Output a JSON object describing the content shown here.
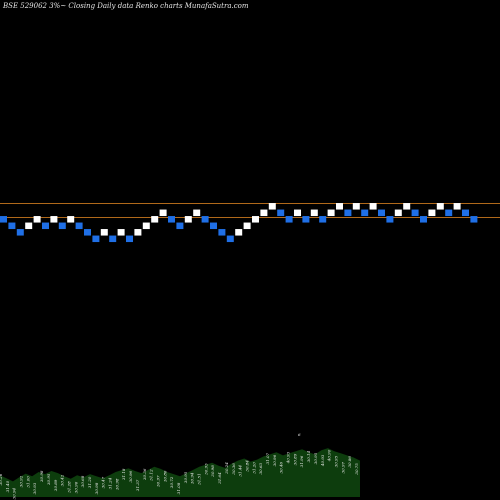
{
  "chart_data": {
    "type": "renko",
    "title": "BSE 529062  3%~  Closing Daily data  Renko  charts MunafaSutra.com",
    "colors": {
      "background": "#000000",
      "up": "#ffffff",
      "down": "#1f6fe6",
      "reference_line": "#c9781e",
      "volume_area": "#0d3d0d"
    },
    "bricks": [
      {
        "level": 0,
        "dir": "down"
      },
      {
        "level": -1,
        "dir": "down"
      },
      {
        "level": -2,
        "dir": "down"
      },
      {
        "level": -1,
        "dir": "up"
      },
      {
        "level": 0,
        "dir": "up"
      },
      {
        "level": -1,
        "dir": "down"
      },
      {
        "level": 0,
        "dir": "up"
      },
      {
        "level": -1,
        "dir": "down"
      },
      {
        "level": 0,
        "dir": "up"
      },
      {
        "level": -1,
        "dir": "down"
      },
      {
        "level": -2,
        "dir": "down"
      },
      {
        "level": -3,
        "dir": "down"
      },
      {
        "level": -2,
        "dir": "up"
      },
      {
        "level": -3,
        "dir": "down"
      },
      {
        "level": -2,
        "dir": "up"
      },
      {
        "level": -3,
        "dir": "down"
      },
      {
        "level": -2,
        "dir": "up"
      },
      {
        "level": -1,
        "dir": "up"
      },
      {
        "level": 0,
        "dir": "up"
      },
      {
        "level": 1,
        "dir": "up"
      },
      {
        "level": 0,
        "dir": "down"
      },
      {
        "level": -1,
        "dir": "down"
      },
      {
        "level": 0,
        "dir": "up"
      },
      {
        "level": 1,
        "dir": "up"
      },
      {
        "level": 0,
        "dir": "down"
      },
      {
        "level": -1,
        "dir": "down"
      },
      {
        "level": -2,
        "dir": "down"
      },
      {
        "level": -3,
        "dir": "down"
      },
      {
        "level": -2,
        "dir": "up"
      },
      {
        "level": -1,
        "dir": "up"
      },
      {
        "level": 0,
        "dir": "up"
      },
      {
        "level": 1,
        "dir": "up"
      },
      {
        "level": 2,
        "dir": "up"
      },
      {
        "level": 1,
        "dir": "down"
      },
      {
        "level": 0,
        "dir": "down"
      },
      {
        "level": 1,
        "dir": "up"
      },
      {
        "level": 0,
        "dir": "down"
      },
      {
        "level": 1,
        "dir": "up"
      },
      {
        "level": 0,
        "dir": "down"
      },
      {
        "level": 1,
        "dir": "up"
      },
      {
        "level": 2,
        "dir": "up"
      },
      {
        "level": 1,
        "dir": "down"
      },
      {
        "level": 2,
        "dir": "up"
      },
      {
        "level": 1,
        "dir": "down"
      },
      {
        "level": 2,
        "dir": "up"
      },
      {
        "level": 1,
        "dir": "down"
      },
      {
        "level": 0,
        "dir": "down"
      },
      {
        "level": 1,
        "dir": "up"
      },
      {
        "level": 2,
        "dir": "up"
      },
      {
        "level": 1,
        "dir": "down"
      },
      {
        "level": 0,
        "dir": "down"
      },
      {
        "level": 1,
        "dir": "up"
      },
      {
        "level": 2,
        "dir": "up"
      },
      {
        "level": 1,
        "dir": "down"
      },
      {
        "level": 2,
        "dir": "up"
      },
      {
        "level": 1,
        "dir": "down"
      },
      {
        "level": 0,
        "dir": "down"
      }
    ],
    "volume_levels": [
      0.42,
      0.36,
      0.3,
      0.38,
      0.45,
      0.4,
      0.48,
      0.44,
      0.5,
      0.46,
      0.4,
      0.35,
      0.42,
      0.38,
      0.44,
      0.4,
      0.36,
      0.42,
      0.48,
      0.52,
      0.55,
      0.5,
      0.46,
      0.52,
      0.58,
      0.54,
      0.48,
      0.44,
      0.4,
      0.46,
      0.52,
      0.58,
      0.62,
      0.66,
      0.6,
      0.56,
      0.64,
      0.7,
      0.74,
      0.68,
      0.72,
      0.78,
      0.82,
      0.86,
      0.8,
      0.84,
      0.88,
      0.92,
      0.86,
      0.82,
      0.9,
      0.94,
      0.88,
      0.84,
      0.8,
      0.76,
      0.7
    ],
    "volume_labels": [
      "30.26",
      "31.40",
      "30.94",
      "30.92",
      "31.00",
      "30.93",
      "30.98",
      "30.95",
      "30.89",
      "30.42",
      "31.28",
      "30.96",
      "30.68",
      "31.20",
      "30.98",
      "30.47",
      "31.24",
      "30.98",
      "31.18",
      "30.96",
      "31.37",
      "30.36",
      "31.12",
      "30.97",
      "30.86",
      "30.72",
      "31.08",
      "30.95",
      "30.94",
      "31.51",
      "30.93",
      "30.98",
      "31.64",
      "30.24",
      "30.36",
      "31.44",
      "30.84",
      "31.20",
      "30.63",
      "31.07",
      "30.96",
      "30.46",
      "40.93",
      "30.89",
      "31.96",
      "30.14",
      "30.95",
      "40.93",
      "40.90",
      "30.95",
      "30.97",
      "30.86",
      "30.75"
    ],
    "marker_label": "6",
    "reference_line": {
      "level": 2
    }
  }
}
